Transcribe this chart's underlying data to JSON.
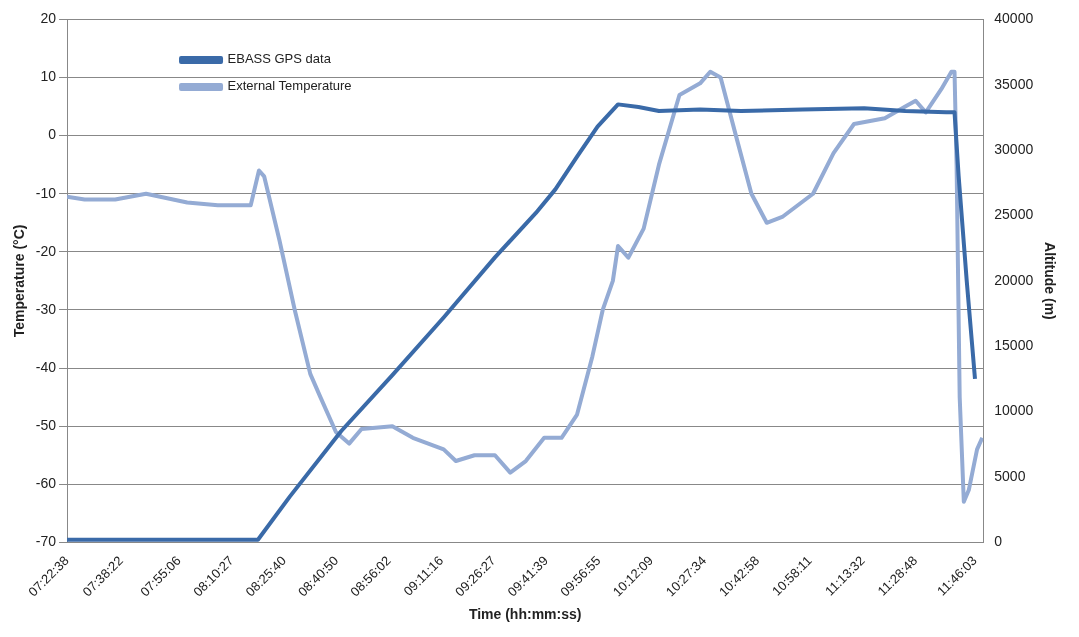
{
  "chart_data": {
    "type": "line",
    "xlabel": "Time (hh:mm:ss)",
    "ylabel": "Temperature (°C)",
    "y2label": "Altitude (m)",
    "xlim": [
      7.377,
      11.807
    ],
    "xticks": [
      {
        "value": 7.3772,
        "label": "07:22:38"
      },
      {
        "value": 7.6394,
        "label": "07:38:22"
      },
      {
        "value": 7.9183,
        "label": "07:55:06"
      },
      {
        "value": 8.1742,
        "label": "08:10:27"
      },
      {
        "value": 8.4278,
        "label": "08:25:40"
      },
      {
        "value": 8.6806,
        "label": "08:40:50"
      },
      {
        "value": 8.9339,
        "label": "08:56:02"
      },
      {
        "value": 9.1878,
        "label": "09:11:16"
      },
      {
        "value": 9.4408,
        "label": "09:26:27"
      },
      {
        "value": 9.6942,
        "label": "09:41:39"
      },
      {
        "value": 9.9486,
        "label": "09:56:55"
      },
      {
        "value": 10.2025,
        "label": "10:12:09"
      },
      {
        "value": 10.4594,
        "label": "10:27:34"
      },
      {
        "value": 10.7161,
        "label": "10:42:58"
      },
      {
        "value": 10.9697,
        "label": "10:58:11"
      },
      {
        "value": 11.2256,
        "label": "11:13:32"
      },
      {
        "value": 11.48,
        "label": "11:28:48"
      },
      {
        "value": 11.7675,
        "label": "11:46:03"
      }
    ],
    "ylim": [
      -70,
      20
    ],
    "yticks": [
      -70,
      -60,
      -50,
      -40,
      -30,
      -20,
      -10,
      0,
      10,
      20
    ],
    "y2lim": [
      0,
      40000
    ],
    "y2ticks": [
      0,
      5000,
      10000,
      15000,
      20000,
      25000,
      30000,
      35000,
      40000
    ],
    "grid": "y",
    "legend": "top left",
    "marker": "none",
    "line_style": "solid",
    "series": [
      {
        "name": "EBASS GPS data",
        "color": "#3a6aa8",
        "axis": "y2",
        "x": [
          7.377,
          8.3,
          8.454,
          8.702,
          8.95,
          9.198,
          9.446,
          9.644,
          9.738,
          9.843,
          9.942,
          10.041,
          10.14,
          10.239,
          10.438,
          10.636,
          10.934,
          11.231,
          11.43,
          11.628,
          11.668,
          11.688,
          11.727,
          11.767
        ],
        "values": [
          200,
          200,
          3500,
          8500,
          12800,
          17200,
          21800,
          25200,
          27000,
          29500,
          31800,
          33500,
          33300,
          33000,
          33100,
          33000,
          33100,
          33200,
          33000,
          32900,
          32900,
          28000,
          20000,
          12500
        ]
      },
      {
        "name": "External Temperature",
        "color": "#94abd4",
        "x": [
          7.377,
          7.462,
          7.61,
          7.759,
          7.958,
          8.106,
          8.265,
          8.305,
          8.33,
          8.404,
          8.478,
          8.553,
          8.602,
          8.677,
          8.741,
          8.801,
          8.95,
          9.049,
          9.198,
          9.257,
          9.347,
          9.446,
          9.52,
          9.595,
          9.684,
          9.768,
          9.843,
          9.917,
          9.967,
          10.016,
          10.041,
          10.091,
          10.165,
          10.239,
          10.338,
          10.438,
          10.487,
          10.537,
          10.611,
          10.686,
          10.76,
          10.835,
          10.984,
          11.083,
          11.182,
          11.331,
          11.43,
          11.48,
          11.529,
          11.604,
          11.653,
          11.668,
          11.678,
          11.693,
          11.713,
          11.737,
          11.777,
          11.802
        ],
        "values": [
          -10.5,
          -11,
          -11,
          -10,
          -11.5,
          -12,
          -12,
          -6,
          -7,
          -18,
          -30,
          -41,
          -45,
          -51,
          -53,
          -50.5,
          -50,
          -52,
          -54,
          -56,
          -55,
          -55,
          -58,
          -56,
          -52,
          -52,
          -48,
          -38,
          -30,
          -25,
          -19,
          -21,
          -16,
          -5,
          7,
          9,
          11,
          10,
          0,
          -10,
          -15,
          -14,
          -10,
          -3,
          2,
          3,
          5,
          6,
          4,
          8,
          11,
          11,
          -5,
          -45,
          -63,
          -61,
          -54,
          -52
        ]
      }
    ]
  }
}
